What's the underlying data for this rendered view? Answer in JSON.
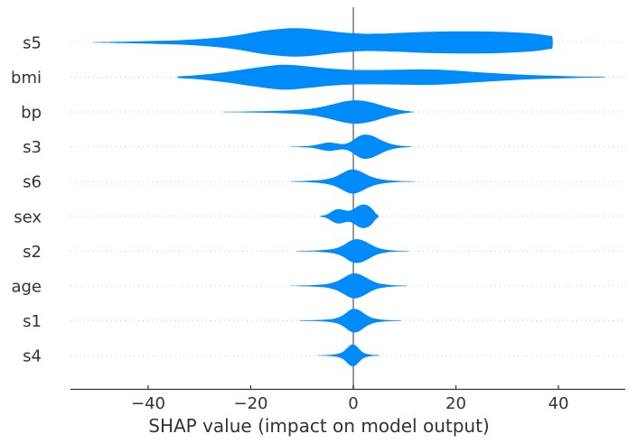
{
  "chart_data": {
    "type": "violin",
    "title": "",
    "xlabel": "SHAP value (impact on model output)",
    "x_ticks": [
      -40,
      -20,
      0,
      20,
      40
    ],
    "x_tick_labels": [
      "−40",
      "−20",
      "0",
      "20",
      "40"
    ],
    "xlim": [
      -55,
      53
    ],
    "grid": "dotted horizontal line per feature row",
    "legend": "none",
    "zero_reference_line": 0,
    "features": [
      {
        "name": "s5",
        "shap_range": [
          -50.5,
          38.8
        ],
        "profile": [
          [
            -50.5,
            0.3
          ],
          [
            -46,
            0.7
          ],
          [
            -42,
            1.1
          ],
          [
            -38,
            1.7
          ],
          [
            -34,
            2.4
          ],
          [
            -30,
            3.6
          ],
          [
            -26,
            5.5
          ],
          [
            -22,
            8.5
          ],
          [
            -18,
            12.5
          ],
          [
            -15,
            14.5
          ],
          [
            -12,
            15.7
          ],
          [
            -9,
            15.3
          ],
          [
            -6,
            13.5
          ],
          [
            -3,
            11.5
          ],
          [
            0,
            10.2
          ],
          [
            2,
            9.6
          ],
          [
            5,
            9.7
          ],
          [
            8,
            10.3
          ],
          [
            12,
            11.2
          ],
          [
            16,
            11.9
          ],
          [
            20,
            12.2
          ],
          [
            24,
            12.3
          ],
          [
            28,
            11.9
          ],
          [
            31,
            11.2
          ],
          [
            34,
            10.2
          ],
          [
            36,
            9.2
          ],
          [
            38,
            7.5
          ],
          [
            38.8,
            6
          ]
        ]
      },
      {
        "name": "bmi",
        "shap_range": [
          -34,
          49
        ],
        "profile": [
          [
            -34,
            0.9
          ],
          [
            -31,
            2
          ],
          [
            -28,
            3.6
          ],
          [
            -25,
            5.6
          ],
          [
            -22,
            8
          ],
          [
            -19,
            10.5
          ],
          [
            -16,
            12.8
          ],
          [
            -14,
            13.8
          ],
          [
            -12,
            13.6
          ],
          [
            -10,
            12.6
          ],
          [
            -8,
            11.4
          ],
          [
            -6,
            10.2
          ],
          [
            -4,
            9.2
          ],
          [
            -2,
            8.5
          ],
          [
            0,
            8.1
          ],
          [
            3,
            7.9
          ],
          [
            6,
            8
          ],
          [
            9,
            8.3
          ],
          [
            12,
            8.6
          ],
          [
            14.5,
            8.6
          ],
          [
            17,
            8.2
          ],
          [
            20,
            7.2
          ],
          [
            23,
            6
          ],
          [
            26,
            4.9
          ],
          [
            29,
            3.9
          ],
          [
            32,
            3
          ],
          [
            35,
            2.3
          ],
          [
            38,
            1.7
          ],
          [
            41,
            1.2
          ],
          [
            44,
            0.8
          ],
          [
            47,
            0.5
          ],
          [
            49,
            0.3
          ]
        ]
      },
      {
        "name": "bp",
        "shap_range": [
          -25,
          11.8
        ],
        "profile": [
          [
            -25,
            0.25
          ],
          [
            -22,
            0.4
          ],
          [
            -19,
            0.65
          ],
          [
            -16,
            1
          ],
          [
            -13,
            1.6
          ],
          [
            -11,
            2.2
          ],
          [
            -9,
            3.1
          ],
          [
            -7.5,
            4.2
          ],
          [
            -6,
            5.8
          ],
          [
            -4.5,
            7.8
          ],
          [
            -3,
            10
          ],
          [
            -1.5,
            11.9
          ],
          [
            -0.2,
            12.9
          ],
          [
            1,
            12.9
          ],
          [
            2.2,
            12.1
          ],
          [
            3.5,
            10.6
          ],
          [
            4.8,
            8.6
          ],
          [
            6,
            6.5
          ],
          [
            7.2,
            4.6
          ],
          [
            8.4,
            3
          ],
          [
            9.5,
            1.9
          ],
          [
            10.5,
            1.1
          ],
          [
            11.3,
            0.5
          ],
          [
            11.8,
            0.25
          ]
        ]
      },
      {
        "name": "s3",
        "shap_range": [
          -12,
          11.3
        ],
        "profile": [
          [
            -12,
            0.25
          ],
          [
            -10.5,
            0.45
          ],
          [
            -9,
            0.8
          ],
          [
            -7.8,
            1.5
          ],
          [
            -6.8,
            2.6
          ],
          [
            -5.8,
            3.9
          ],
          [
            -5,
            4.6
          ],
          [
            -4.2,
            4.5
          ],
          [
            -3.4,
            3.8
          ],
          [
            -2.6,
            3.1
          ],
          [
            -1.8,
            3.1
          ],
          [
            -1,
            4.2
          ],
          [
            -0.3,
            6.3
          ],
          [
            0.4,
            9.2
          ],
          [
            1.2,
            11.9
          ],
          [
            2,
            13.3
          ],
          [
            2.9,
            13.2
          ],
          [
            3.8,
            11.8
          ],
          [
            4.7,
            9.4
          ],
          [
            5.6,
            6.8
          ],
          [
            6.5,
            4.6
          ],
          [
            7.4,
            3
          ],
          [
            8.3,
            1.9
          ],
          [
            9.3,
            1.1
          ],
          [
            10.3,
            0.6
          ],
          [
            11.3,
            0.3
          ]
        ]
      },
      {
        "name": "s6",
        "shap_range": [
          -12,
          11.8
        ],
        "profile": [
          [
            -12,
            0.25
          ],
          [
            -10.5,
            0.45
          ],
          [
            -9,
            0.75
          ],
          [
            -7.5,
            1.2
          ],
          [
            -6,
            2
          ],
          [
            -4.8,
            3.2
          ],
          [
            -3.6,
            5.2
          ],
          [
            -2.5,
            8.2
          ],
          [
            -1.5,
            11.2
          ],
          [
            -0.6,
            13.2
          ],
          [
            0.2,
            13.3
          ],
          [
            1.1,
            11.8
          ],
          [
            2,
            9.4
          ],
          [
            3,
            6.6
          ],
          [
            4,
            4.4
          ],
          [
            5,
            2.9
          ],
          [
            6.2,
            1.8
          ],
          [
            7.5,
            1.1
          ],
          [
            9,
            0.6
          ],
          [
            10.5,
            0.35
          ],
          [
            11.8,
            0.25
          ]
        ]
      },
      {
        "name": "sex",
        "shap_range": [
          -6.4,
          4.9
        ],
        "profile": [
          [
            -6.4,
            0.4
          ],
          [
            -5.7,
            1
          ],
          [
            -5,
            2.4
          ],
          [
            -4.4,
            4.6
          ],
          [
            -3.8,
            6.6
          ],
          [
            -3.2,
            7.8
          ],
          [
            -2.6,
            7.9
          ],
          [
            -2,
            7.2
          ],
          [
            -1.4,
            6.3
          ],
          [
            -0.8,
            6.2
          ],
          [
            -0.2,
            7.3
          ],
          [
            0.4,
            9.3
          ],
          [
            1,
            11.5
          ],
          [
            1.6,
            12.8
          ],
          [
            2.2,
            13
          ],
          [
            2.8,
            12.1
          ],
          [
            3.3,
            10.2
          ],
          [
            3.8,
            7.4
          ],
          [
            4.2,
            4.6
          ],
          [
            4.6,
            2.2
          ],
          [
            4.9,
            0.8
          ]
        ]
      },
      {
        "name": "s2",
        "shap_range": [
          -11,
          10.8
        ],
        "profile": [
          [
            -11,
            0.2
          ],
          [
            -9.5,
            0.35
          ],
          [
            -8,
            0.55
          ],
          [
            -6.5,
            0.9
          ],
          [
            -5.2,
            1.5
          ],
          [
            -4,
            2.4
          ],
          [
            -3,
            3.8
          ],
          [
            -2.1,
            6
          ],
          [
            -1.3,
            8.8
          ],
          [
            -0.5,
            11.6
          ],
          [
            0.3,
            13.1
          ],
          [
            1.1,
            13
          ],
          [
            1.9,
            11.7
          ],
          [
            2.7,
            9.5
          ],
          [
            3.5,
            6.9
          ],
          [
            4.3,
            4.7
          ],
          [
            5.1,
            3
          ],
          [
            6,
            1.9
          ],
          [
            7,
            1.1
          ],
          [
            8.2,
            0.6
          ],
          [
            9.5,
            0.35
          ],
          [
            10.8,
            0.2
          ]
        ]
      },
      {
        "name": "age",
        "shap_range": [
          -12,
          10.3
        ],
        "profile": [
          [
            -12,
            0.2
          ],
          [
            -10.5,
            0.35
          ],
          [
            -9,
            0.55
          ],
          [
            -7.5,
            0.9
          ],
          [
            -6,
            1.5
          ],
          [
            -4.8,
            2.4
          ],
          [
            -3.7,
            4
          ],
          [
            -2.7,
            6.4
          ],
          [
            -1.8,
            9.3
          ],
          [
            -0.9,
            12.2
          ],
          [
            -0.1,
            13.8
          ],
          [
            0.8,
            13.4
          ],
          [
            1.7,
            11.6
          ],
          [
            2.6,
            8.8
          ],
          [
            3.5,
            6
          ],
          [
            4.4,
            3.8
          ],
          [
            5.4,
            2.3
          ],
          [
            6.5,
            1.4
          ],
          [
            7.7,
            0.8
          ],
          [
            9,
            0.45
          ],
          [
            10.3,
            0.25
          ]
        ]
      },
      {
        "name": "s1",
        "shap_range": [
          -10.5,
          9.2
        ],
        "profile": [
          [
            -10.5,
            0.2
          ],
          [
            -9,
            0.35
          ],
          [
            -7.5,
            0.55
          ],
          [
            -6,
            0.9
          ],
          [
            -4.8,
            1.4
          ],
          [
            -3.8,
            2.2
          ],
          [
            -2.9,
            3.6
          ],
          [
            -2.1,
            5.8
          ],
          [
            -1.4,
            8.6
          ],
          [
            -0.7,
            11.6
          ],
          [
            0,
            13.1
          ],
          [
            0.7,
            12.7
          ],
          [
            1.4,
            10.8
          ],
          [
            2.1,
            8
          ],
          [
            2.8,
            5.4
          ],
          [
            3.6,
            3.3
          ],
          [
            4.5,
            2
          ],
          [
            5.5,
            1.2
          ],
          [
            6.7,
            0.7
          ],
          [
            8,
            0.4
          ],
          [
            9.2,
            0.25
          ]
        ]
      },
      {
        "name": "s4",
        "shap_range": [
          -7,
          5
        ],
        "profile": [
          [
            -7,
            0.2
          ],
          [
            -6,
            0.35
          ],
          [
            -5,
            0.55
          ],
          [
            -4.2,
            0.85
          ],
          [
            -3.5,
            1.3
          ],
          [
            -2.9,
            2
          ],
          [
            -2.3,
            3.2
          ],
          [
            -1.8,
            5
          ],
          [
            -1.3,
            7.6
          ],
          [
            -0.8,
            10.3
          ],
          [
            -0.3,
            12
          ],
          [
            0.2,
            11.8
          ],
          [
            0.7,
            9.8
          ],
          [
            1.2,
            6.8
          ],
          [
            1.7,
            4.2
          ],
          [
            2.2,
            2.5
          ],
          [
            2.8,
            1.5
          ],
          [
            3.5,
            0.85
          ],
          [
            4.3,
            0.5
          ],
          [
            5,
            0.3
          ]
        ]
      }
    ],
    "colors": {
      "violin_fill": "#008bfb",
      "zero_line": "#999999",
      "gridline": "#cccccc",
      "axis": "#333333",
      "tick_label": "#333333",
      "feature_label": "#333333",
      "background": "#ffffff"
    }
  }
}
